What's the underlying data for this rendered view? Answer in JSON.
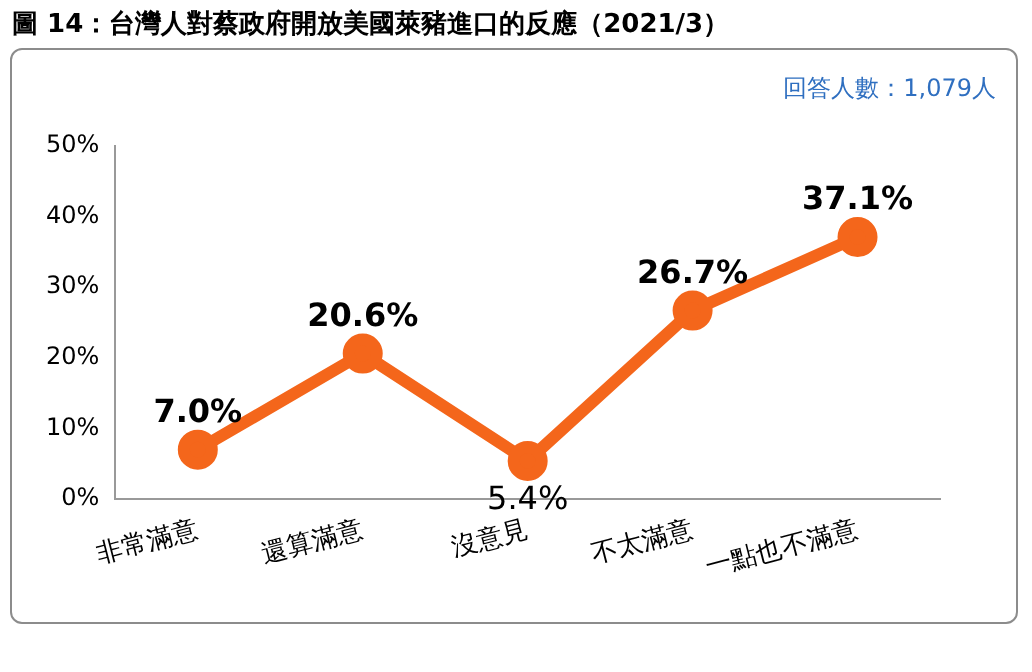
{
  "chart_data": {
    "type": "line",
    "title": "圖 14：台灣人對蔡政府開放美國萊豬進口的反應（2021/3）",
    "annotations": [
      "回答人數：1,079人"
    ],
    "categories": [
      "非常滿意",
      "還算滿意",
      "沒意見",
      "不太滿意",
      "一點也不滿意"
    ],
    "series": [
      {
        "color": "#f4661b",
        "values": [
          7.0,
          20.6,
          5.4,
          26.7,
          37.1
        ],
        "value_labels": [
          "7.0%",
          "20.6%",
          "5.4%",
          "26.7%",
          "37.1%"
        ]
      }
    ],
    "ylim": [
      0,
      50
    ],
    "yticks": [
      {
        "value": 0,
        "label": "0%"
      },
      {
        "value": 10,
        "label": "10%"
      },
      {
        "value": 20,
        "label": "20%"
      },
      {
        "value": 30,
        "label": "30%"
      },
      {
        "value": 40,
        "label": "40%"
      },
      {
        "value": 50,
        "label": "50%"
      }
    ],
    "grid": false,
    "legend": false,
    "marker": "circle",
    "line_style": "solid"
  }
}
